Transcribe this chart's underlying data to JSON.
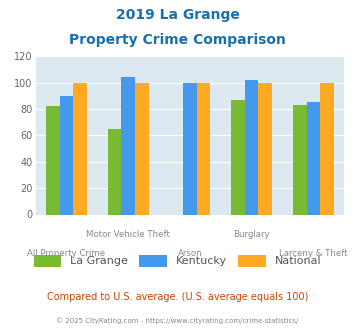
{
  "title_line1": "2019 La Grange",
  "title_line2": "Property Crime Comparison",
  "title_color": "#1a6faf",
  "categories": [
    "All Property Crime",
    "Motor Vehicle Theft",
    "Arson",
    "Burglary",
    "Larceny & Theft"
  ],
  "lagrange_vals": [
    82,
    65,
    null,
    87,
    83
  ],
  "kentucky_vals": [
    90,
    104,
    100,
    102,
    85
  ],
  "national_vals": [
    100,
    100,
    100,
    100,
    100
  ],
  "color_lagrange": "#77bb33",
  "color_kentucky": "#4499ee",
  "color_national": "#ffaa22",
  "ylim": [
    0,
    120
  ],
  "yticks": [
    0,
    20,
    40,
    60,
    80,
    100,
    120
  ],
  "bg_color": "#dce9f0",
  "footnote": "Compared to U.S. average. (U.S. average equals 100)",
  "footnote_color": "#cc4400",
  "credit": "© 2025 CityRating.com - https://www.cityrating.com/crime-statistics/",
  "credit_color": "#888888",
  "label_color": "#888888"
}
